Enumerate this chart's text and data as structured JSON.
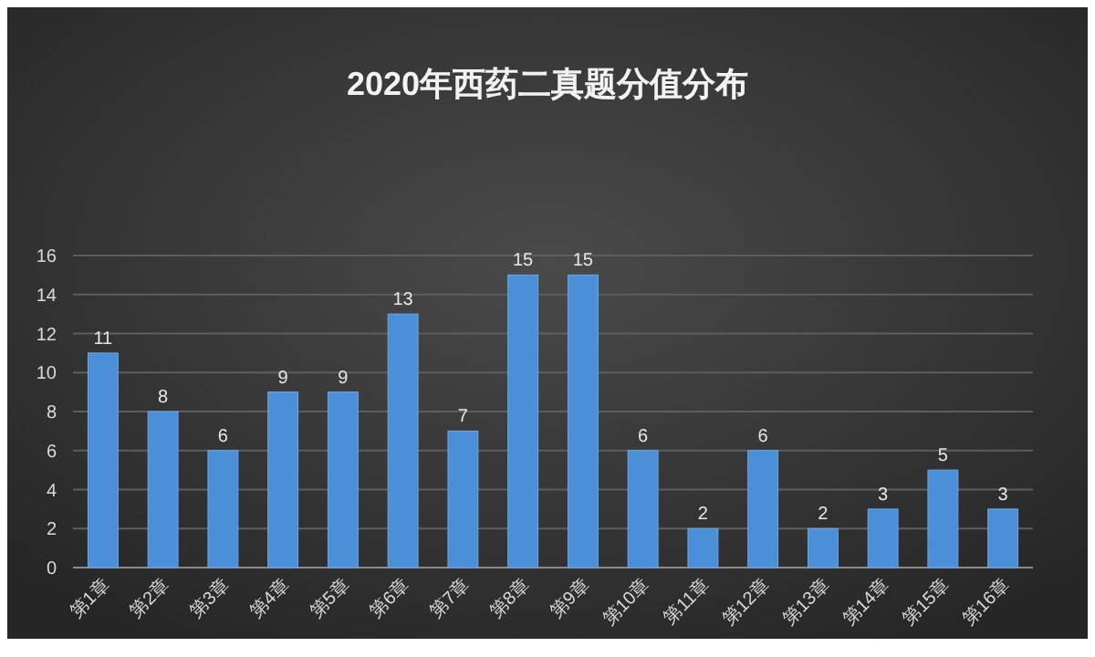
{
  "chart_data": {
    "type": "bar",
    "title": "2020年西药二真题分值分布",
    "categories": [
      "第1章",
      "第2章",
      "第3章",
      "第4章",
      "第5章",
      "第6章",
      "第7章",
      "第8章",
      "第9章",
      "第10章",
      "第11章",
      "第12章",
      "第13章",
      "第14章",
      "第15章",
      "第16章"
    ],
    "values": [
      11,
      8,
      6,
      9,
      9,
      13,
      7,
      15,
      15,
      6,
      2,
      6,
      2,
      3,
      5,
      3
    ],
    "color": "#4a8fd8",
    "ylim": [
      0,
      16
    ],
    "yticks": [
      0,
      2,
      4,
      6,
      8,
      10,
      12,
      14,
      16
    ],
    "grid": "y",
    "data_labels": true
  }
}
